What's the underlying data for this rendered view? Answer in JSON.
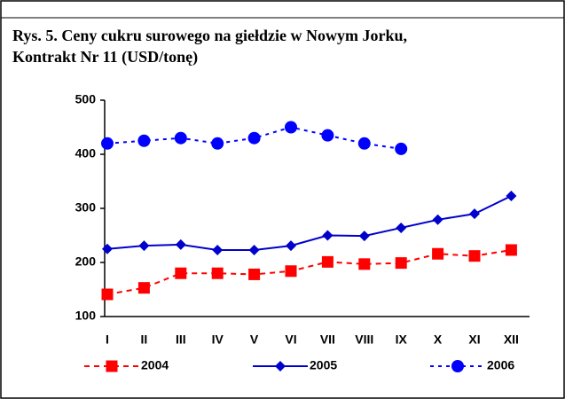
{
  "chart_data": {
    "type": "line",
    "title": [
      "Rys. 5. Ceny cukru surowego na giełdzie w Nowym Jorku,",
      "Kontrakt Nr 11 (USD/tonę)"
    ],
    "categories": [
      "I",
      "II",
      "III",
      "IV",
      "V",
      "VI",
      "VII",
      "VIII",
      "IX",
      "X",
      "XI",
      "XII"
    ],
    "series": [
      {
        "name": "2004",
        "color": "#ff0000",
        "marker": "square",
        "dash": "dashed",
        "values": [
          141,
          153,
          180,
          180,
          178,
          184,
          201,
          197,
          199,
          216,
          212,
          223
        ]
      },
      {
        "name": "2005",
        "color": "#0000cc",
        "marker": "diamond",
        "dash": "solid",
        "values": [
          225,
          231,
          233,
          223,
          223,
          231,
          250,
          249,
          264,
          279,
          290,
          323
        ]
      },
      {
        "name": "2006",
        "color": "#0000ff",
        "marker": "circle",
        "dash": "dotted",
        "values": [
          420,
          425,
          430,
          420,
          430,
          450,
          435,
          420,
          410,
          null,
          null,
          null
        ]
      }
    ],
    "ylim": [
      100,
      500
    ],
    "yticks": [
      100,
      200,
      300,
      400,
      500
    ],
    "grid": false,
    "legend": "bottom"
  }
}
